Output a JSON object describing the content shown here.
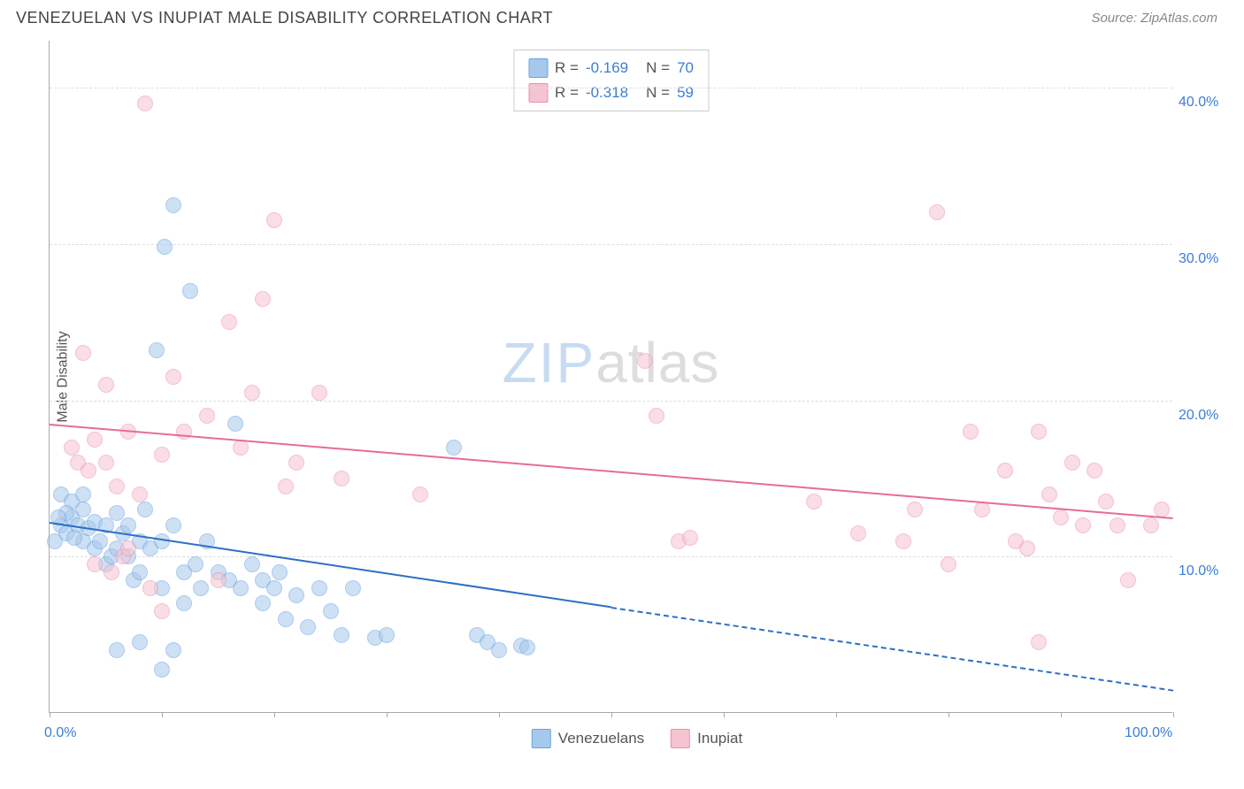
{
  "header": {
    "title": "VENEZUELAN VS INUPIAT MALE DISABILITY CORRELATION CHART",
    "source": "Source: ZipAtlas.com"
  },
  "chart": {
    "type": "scatter",
    "ylabel": "Male Disability",
    "xlim": [
      0,
      100
    ],
    "ylim": [
      0,
      43
    ],
    "xtick_positions": [
      0,
      10,
      20,
      30,
      40,
      50,
      60,
      70,
      80,
      90,
      100
    ],
    "xtick_labels": {
      "0": "0.0%",
      "100": "100.0%"
    },
    "ytick_positions": [
      10,
      20,
      30,
      40
    ],
    "ytick_labels": [
      "10.0%",
      "20.0%",
      "30.0%",
      "40.0%"
    ],
    "grid_color": "#dddddd",
    "axis_color": "#aaaaaa",
    "background_color": "#ffffff",
    "point_radius": 9,
    "series": [
      {
        "name": "Venezuelans",
        "fill_color": "#a6c8ec",
        "stroke_color": "#6aa1de",
        "fill_opacity": 0.55,
        "trend_color": "#2b6fc7",
        "R": "-0.169",
        "N": "70",
        "trendline": {
          "x1": 0,
          "y1": 12.2,
          "x2": 50,
          "y2": 6.8,
          "x2_ext": 100,
          "y2_ext": 1.5
        },
        "points": [
          [
            1,
            12
          ],
          [
            1.5,
            11.5
          ],
          [
            2,
            12.5
          ],
          [
            2.5,
            12
          ],
          [
            3,
            11
          ],
          [
            3,
            13
          ],
          [
            3.5,
            11.8
          ],
          [
            4,
            12.2
          ],
          [
            4,
            10.5
          ],
          [
            4.5,
            11
          ],
          [
            5,
            12
          ],
          [
            5,
            9.5
          ],
          [
            5.5,
            10
          ],
          [
            6,
            12.8
          ],
          [
            6,
            10.5
          ],
          [
            6.5,
            11.5
          ],
          [
            7,
            10
          ],
          [
            7,
            12
          ],
          [
            7.5,
            8.5
          ],
          [
            8,
            11
          ],
          [
            8,
            9
          ],
          [
            8.5,
            13
          ],
          [
            9,
            10.5
          ],
          [
            9.5,
            23.2
          ],
          [
            10,
            11
          ],
          [
            10,
            8
          ],
          [
            10.2,
            29.8
          ],
          [
            11,
            32.5
          ],
          [
            11,
            12
          ],
          [
            12,
            9
          ],
          [
            12,
            7
          ],
          [
            12.5,
            27
          ],
          [
            13,
            9.5
          ],
          [
            13.5,
            8
          ],
          [
            14,
            11
          ],
          [
            10,
            2.8
          ],
          [
            15,
            9
          ],
          [
            16,
            8.5
          ],
          [
            16.5,
            18.5
          ],
          [
            17,
            8
          ],
          [
            18,
            9.5
          ],
          [
            19,
            7
          ],
          [
            19,
            8.5
          ],
          [
            20,
            8
          ],
          [
            20.5,
            9
          ],
          [
            21,
            6
          ],
          [
            22,
            7.5
          ],
          [
            23,
            5.5
          ],
          [
            24,
            8
          ],
          [
            25,
            6.5
          ],
          [
            26,
            5
          ],
          [
            27,
            8
          ],
          [
            29,
            4.8
          ],
          [
            30,
            5
          ],
          [
            36,
            17
          ],
          [
            38,
            5
          ],
          [
            39,
            4.5
          ],
          [
            40,
            4
          ],
          [
            42,
            4.3
          ],
          [
            42.5,
            4.2
          ],
          [
            8,
            4.5
          ],
          [
            11,
            4
          ],
          [
            1,
            14
          ],
          [
            2,
            13.5
          ],
          [
            3,
            14
          ],
          [
            1.5,
            12.8
          ],
          [
            0.5,
            11
          ],
          [
            0.8,
            12.5
          ],
          [
            2.2,
            11.2
          ],
          [
            6,
            4
          ]
        ]
      },
      {
        "name": "Inupiat",
        "fill_color": "#f6c3d1",
        "stroke_color": "#ea8fb0",
        "fill_opacity": 0.55,
        "trend_color": "#e86b9a",
        "R": "-0.318",
        "N": "59",
        "trendline": {
          "x1": 0,
          "y1": 18.5,
          "x2": 100,
          "y2": 12.5
        },
        "points": [
          [
            2,
            17
          ],
          [
            2.5,
            16
          ],
          [
            3,
            23
          ],
          [
            3.5,
            15.5
          ],
          [
            4,
            17.5
          ],
          [
            5,
            21
          ],
          [
            5,
            16
          ],
          [
            6,
            14.5
          ],
          [
            6.5,
            10
          ],
          [
            7,
            18
          ],
          [
            8,
            14
          ],
          [
            8.5,
            39
          ],
          [
            10,
            16.5
          ],
          [
            11,
            21.5
          ],
          [
            12,
            18
          ],
          [
            14,
            19
          ],
          [
            16,
            25
          ],
          [
            17,
            17
          ],
          [
            18,
            20.5
          ],
          [
            19,
            26.5
          ],
          [
            20,
            31.5
          ],
          [
            21,
            14.5
          ],
          [
            22,
            16
          ],
          [
            24,
            20.5
          ],
          [
            26,
            15
          ],
          [
            33,
            14
          ],
          [
            4,
            9.5
          ],
          [
            5.5,
            9
          ],
          [
            7,
            10.5
          ],
          [
            9,
            8
          ],
          [
            10,
            6.5
          ],
          [
            15,
            8.5
          ],
          [
            53,
            22.5
          ],
          [
            54,
            19
          ],
          [
            56,
            11
          ],
          [
            57,
            11.2
          ],
          [
            68,
            13.5
          ],
          [
            72,
            11.5
          ],
          [
            76,
            11
          ],
          [
            77,
            13
          ],
          [
            79,
            32
          ],
          [
            82,
            18
          ],
          [
            83,
            13
          ],
          [
            85,
            15.5
          ],
          [
            86,
            11
          ],
          [
            87,
            10.5
          ],
          [
            88,
            18
          ],
          [
            89,
            14
          ],
          [
            90,
            12.5
          ],
          [
            91,
            16
          ],
          [
            92,
            12
          ],
          [
            93,
            15.5
          ],
          [
            94,
            13.5
          ],
          [
            95,
            12
          ],
          [
            96,
            8.5
          ],
          [
            98,
            12
          ],
          [
            99,
            13
          ],
          [
            88,
            4.5
          ],
          [
            80,
            9.5
          ]
        ]
      }
    ],
    "stats_legend_swatch_blue": {
      "fill": "#a6c8ec",
      "stroke": "#6aa1de"
    },
    "stats_legend_swatch_pink": {
      "fill": "#f6c3d1",
      "stroke": "#ea8fb0"
    },
    "stat_value_color": "#3b7dd8",
    "watermark": {
      "zip": "ZIP",
      "atlas": "atlas",
      "zip_color": "#c7dbf2",
      "atlas_color": "#dddddd"
    }
  }
}
